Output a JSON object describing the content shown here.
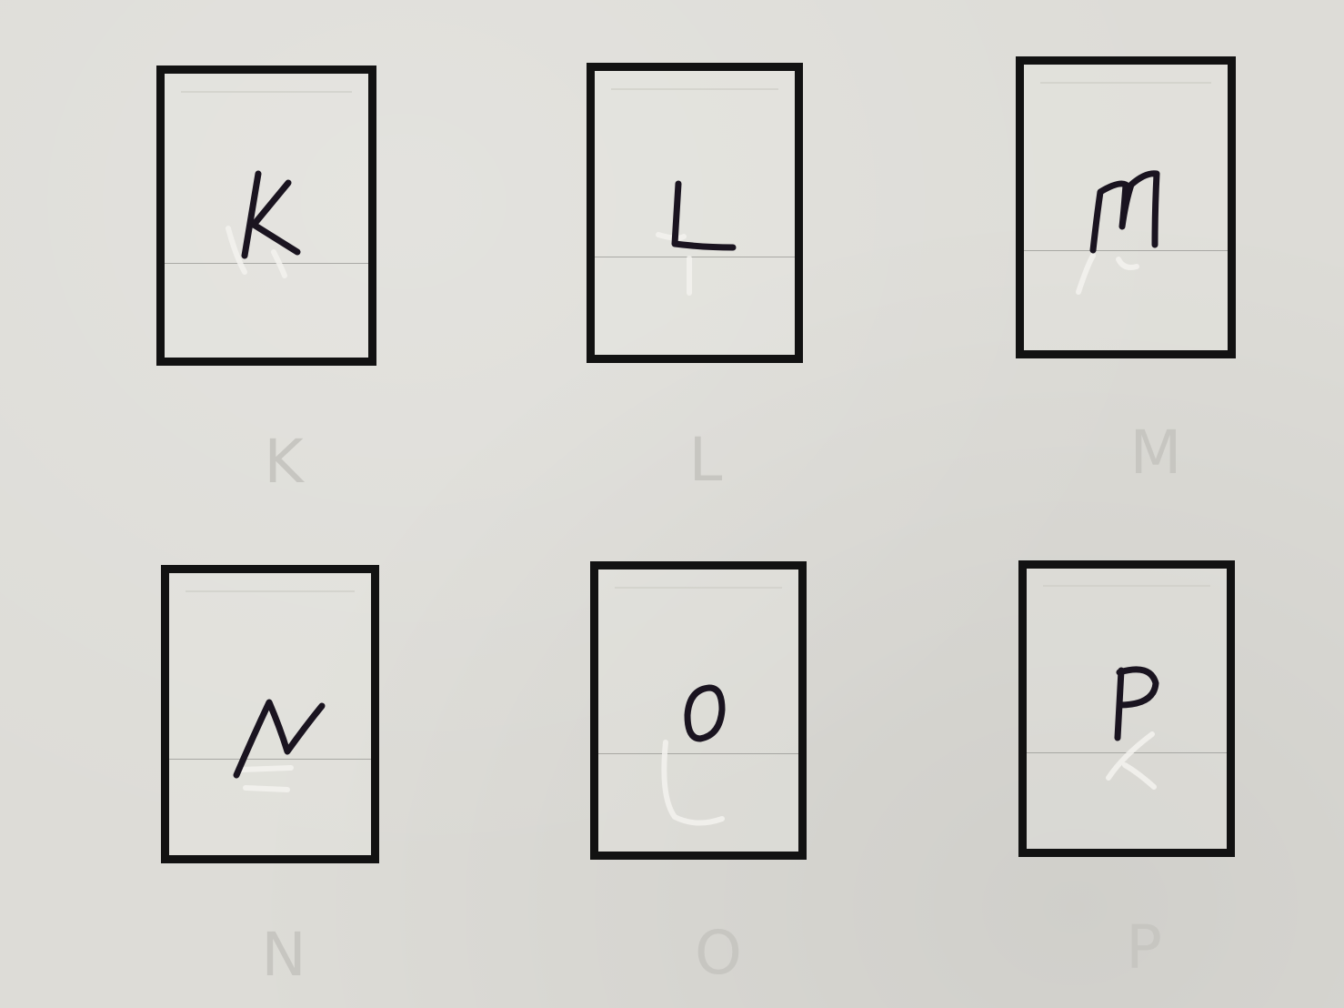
{
  "cells": [
    {
      "handwritten": "K",
      "printed": "K"
    },
    {
      "handwritten": "L",
      "printed": "L"
    },
    {
      "handwritten": "M",
      "printed": "M"
    },
    {
      "handwritten": "N",
      "printed": "N"
    },
    {
      "handwritten": "O",
      "printed": "O"
    },
    {
      "handwritten": "P",
      "printed": "P"
    }
  ]
}
